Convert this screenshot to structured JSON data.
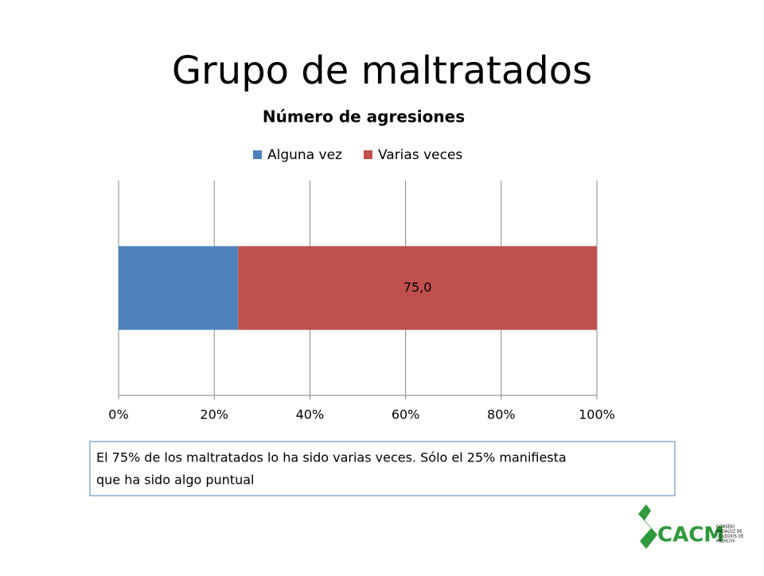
{
  "slide_title": "Grupo de maltratados",
  "chart_data": {
    "type": "bar",
    "orientation": "horizontal",
    "stacked": true,
    "title": "Número de agresiones",
    "categories": [
      null
    ],
    "series": [
      {
        "name": "Alguna vez",
        "color": "#4f81bd",
        "values": [
          25
        ]
      },
      {
        "name": "Varias veces",
        "color": "#c0504d",
        "values": [
          75
        ],
        "value_labels": [
          "75,0"
        ]
      }
    ],
    "xlim": [
      0,
      100
    ],
    "xticks": [
      {
        "value": 0,
        "label": "0%"
      },
      {
        "value": 20,
        "label": "20%"
      },
      {
        "value": 40,
        "label": "40%"
      },
      {
        "value": 60,
        "label": "60%"
      },
      {
        "value": 80,
        "label": "80%"
      },
      {
        "value": 100,
        "label": "100%"
      }
    ],
    "grid": true,
    "legend": "top"
  },
  "note": {
    "lines": [
      "El 75% de los maltratados lo ha sido varias veces. Sólo el 25% manifiesta",
      "que ha sido algo puntual"
    ]
  },
  "logo": {
    "text": "CACM",
    "subtitle": [
      "CONSEJO",
      "ANDALUZ DE",
      "COLEGIOS DE",
      "MÉDICOS"
    ]
  }
}
